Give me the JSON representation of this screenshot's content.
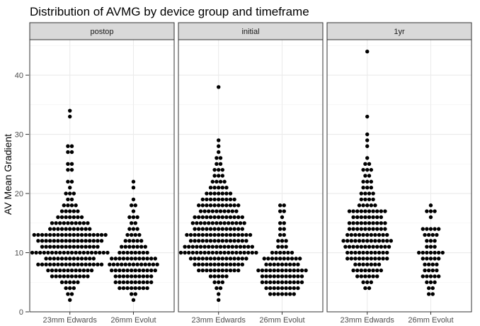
{
  "chart_data": {
    "type": "scatter",
    "subtype": "beeswarm / dot plot, faceted",
    "title": "Distribution of AVMG by device group and timeframe",
    "ylabel": "AV Mean Gradient",
    "xlabel": "",
    "categories": [
      "23mm Edwards",
      "26mm Evolut"
    ],
    "ylim": [
      0,
      46
    ],
    "yticks": [
      0,
      10,
      20,
      30,
      40
    ],
    "grid": true,
    "theme": "bw",
    "point_color": "#000000",
    "facets": [
      {
        "label": "postop",
        "series": [
          {
            "category": "23mm Edwards",
            "bins": [
              {
                "y": 2,
                "n": 1
              },
              {
                "y": 3,
                "n": 2
              },
              {
                "y": 4,
                "n": 3
              },
              {
                "y": 5,
                "n": 5
              },
              {
                "y": 6,
                "n": 10
              },
              {
                "y": 7,
                "n": 12
              },
              {
                "y": 8,
                "n": 17
              },
              {
                "y": 9,
                "n": 13
              },
              {
                "y": 10,
                "n": 20
              },
              {
                "y": 11,
                "n": 15
              },
              {
                "y": 12,
                "n": 17
              },
              {
                "y": 13,
                "n": 19
              },
              {
                "y": 14,
                "n": 11
              },
              {
                "y": 15,
                "n": 10
              },
              {
                "y": 16,
                "n": 7
              },
              {
                "y": 17,
                "n": 5
              },
              {
                "y": 18,
                "n": 4
              },
              {
                "y": 19,
                "n": 2
              },
              {
                "y": 20,
                "n": 3
              },
              {
                "y": 21,
                "n": 1
              },
              {
                "y": 22,
                "n": 2
              },
              {
                "y": 24,
                "n": 2
              },
              {
                "y": 25,
                "n": 2
              },
              {
                "y": 27,
                "n": 2
              },
              {
                "y": 28,
                "n": 2
              },
              {
                "y": 33,
                "n": 1
              },
              {
                "y": 34,
                "n": 1
              }
            ]
          },
          {
            "category": "26mm Evolut",
            "bins": [
              {
                "y": 2,
                "n": 1
              },
              {
                "y": 3,
                "n": 2
              },
              {
                "y": 4,
                "n": 8
              },
              {
                "y": 5,
                "n": 10
              },
              {
                "y": 6,
                "n": 10
              },
              {
                "y": 7,
                "n": 12
              },
              {
                "y": 8,
                "n": 13
              },
              {
                "y": 9,
                "n": 12
              },
              {
                "y": 10,
                "n": 8
              },
              {
                "y": 11,
                "n": 7
              },
              {
                "y": 12,
                "n": 5
              },
              {
                "y": 13,
                "n": 4
              },
              {
                "y": 14,
                "n": 3
              },
              {
                "y": 15,
                "n": 2
              },
              {
                "y": 16,
                "n": 3
              },
              {
                "y": 17,
                "n": 1
              },
              {
                "y": 18,
                "n": 2
              },
              {
                "y": 19,
                "n": 1
              },
              {
                "y": 21,
                "n": 1
              },
              {
                "y": 22,
                "n": 1
              }
            ]
          }
        ]
      },
      {
        "label": "initial",
        "series": [
          {
            "category": "23mm Edwards",
            "bins": [
              {
                "y": 2,
                "n": 1
              },
              {
                "y": 3,
                "n": 1
              },
              {
                "y": 4,
                "n": 2
              },
              {
                "y": 5,
                "n": 3
              },
              {
                "y": 6,
                "n": 5
              },
              {
                "y": 7,
                "n": 11
              },
              {
                "y": 8,
                "n": 13
              },
              {
                "y": 9,
                "n": 15
              },
              {
                "y": 10,
                "n": 20
              },
              {
                "y": 11,
                "n": 18
              },
              {
                "y": 12,
                "n": 15
              },
              {
                "y": 13,
                "n": 17
              },
              {
                "y": 14,
                "n": 13
              },
              {
                "y": 15,
                "n": 14
              },
              {
                "y": 16,
                "n": 13
              },
              {
                "y": 17,
                "n": 10
              },
              {
                "y": 18,
                "n": 11
              },
              {
                "y": 19,
                "n": 9
              },
              {
                "y": 20,
                "n": 7
              },
              {
                "y": 21,
                "n": 5
              },
              {
                "y": 22,
                "n": 4
              },
              {
                "y": 23,
                "n": 3
              },
              {
                "y": 24,
                "n": 3
              },
              {
                "y": 25,
                "n": 2
              },
              {
                "y": 26,
                "n": 2
              },
              {
                "y": 27,
                "n": 1
              },
              {
                "y": 28,
                "n": 1
              },
              {
                "y": 29,
                "n": 1
              },
              {
                "y": 38,
                "n": 1
              }
            ]
          },
          {
            "category": "26mm Evolut",
            "bins": [
              {
                "y": 3,
                "n": 7
              },
              {
                "y": 4,
                "n": 9
              },
              {
                "y": 5,
                "n": 11
              },
              {
                "y": 6,
                "n": 11
              },
              {
                "y": 7,
                "n": 13
              },
              {
                "y": 8,
                "n": 9
              },
              {
                "y": 9,
                "n": 10
              },
              {
                "y": 10,
                "n": 6
              },
              {
                "y": 11,
                "n": 3
              },
              {
                "y": 12,
                "n": 3
              },
              {
                "y": 13,
                "n": 2
              },
              {
                "y": 14,
                "n": 2
              },
              {
                "y": 15,
                "n": 2
              },
              {
                "y": 16,
                "n": 1
              },
              {
                "y": 17,
                "n": 2
              },
              {
                "y": 18,
                "n": 2
              }
            ]
          }
        ]
      },
      {
        "label": "1yr",
        "series": [
          {
            "category": "23mm Edwards",
            "bins": [
              {
                "y": 4,
                "n": 2
              },
              {
                "y": 5,
                "n": 3
              },
              {
                "y": 6,
                "n": 6
              },
              {
                "y": 7,
                "n": 8
              },
              {
                "y": 8,
                "n": 7
              },
              {
                "y": 9,
                "n": 11
              },
              {
                "y": 10,
                "n": 11
              },
              {
                "y": 11,
                "n": 12
              },
              {
                "y": 12,
                "n": 13
              },
              {
                "y": 13,
                "n": 11
              },
              {
                "y": 14,
                "n": 10
              },
              {
                "y": 15,
                "n": 10
              },
              {
                "y": 16,
                "n": 8
              },
              {
                "y": 17,
                "n": 10
              },
              {
                "y": 18,
                "n": 5
              },
              {
                "y": 19,
                "n": 4
              },
              {
                "y": 20,
                "n": 4
              },
              {
                "y": 21,
                "n": 3
              },
              {
                "y": 22,
                "n": 3
              },
              {
                "y": 23,
                "n": 2
              },
              {
                "y": 24,
                "n": 3
              },
              {
                "y": 25,
                "n": 2
              },
              {
                "y": 26,
                "n": 1
              },
              {
                "y": 28,
                "n": 1
              },
              {
                "y": 29,
                "n": 1
              },
              {
                "y": 30,
                "n": 1
              },
              {
                "y": 33,
                "n": 1
              },
              {
                "y": 44,
                "n": 1
              }
            ]
          },
          {
            "category": "26mm Evolut",
            "bins": [
              {
                "y": 3,
                "n": 2
              },
              {
                "y": 4,
                "n": 2
              },
              {
                "y": 5,
                "n": 3
              },
              {
                "y": 6,
                "n": 5
              },
              {
                "y": 7,
                "n": 4
              },
              {
                "y": 8,
                "n": 4
              },
              {
                "y": 9,
                "n": 5
              },
              {
                "y": 10,
                "n": 7
              },
              {
                "y": 11,
                "n": 3
              },
              {
                "y": 12,
                "n": 3
              },
              {
                "y": 13,
                "n": 4
              },
              {
                "y": 14,
                "n": 5
              },
              {
                "y": 16,
                "n": 1
              },
              {
                "y": 17,
                "n": 3
              },
              {
                "y": 18,
                "n": 1
              }
            ]
          }
        ]
      }
    ]
  }
}
